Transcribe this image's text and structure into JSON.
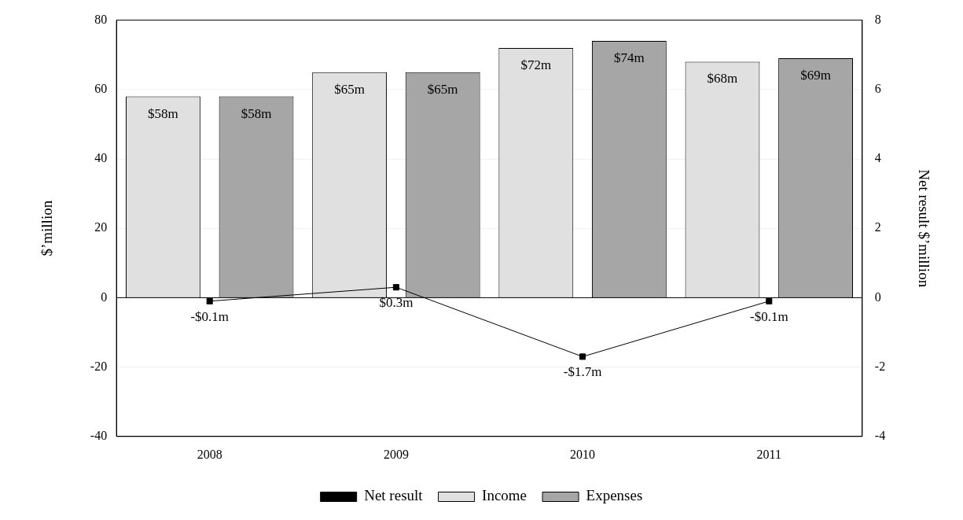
{
  "chart_data": {
    "type": "bar",
    "ylabel": "$’million",
    "y2label": "Net result $’million",
    "categories": [
      "2008",
      "2009",
      "2010",
      "2011"
    ],
    "series": [
      {
        "name": "Income",
        "color": "#e0e0e0",
        "values": [
          58,
          65,
          72,
          68
        ],
        "value_labels": [
          "$58m",
          "$65m",
          "$72m",
          "$68m"
        ]
      },
      {
        "name": "Expenses",
        "color": "#a6a6a6",
        "values": [
          58,
          65,
          74,
          69
        ],
        "value_labels": [
          "$58m",
          "$65m",
          "$74m",
          "$69m"
        ]
      },
      {
        "name": "Net result",
        "type": "line",
        "axis": "y2",
        "color": "#000000",
        "marker": "square",
        "line_style": "solid",
        "values": [
          -0.1,
          0.3,
          -1.7,
          -0.1
        ],
        "value_labels": [
          "-$0.1m",
          "$0.3m",
          "-$1.7m",
          "-$0.1m"
        ]
      }
    ],
    "ylim": [
      -40,
      80
    ],
    "yticks": [
      -40,
      -20,
      0,
      20,
      40,
      60,
      80
    ],
    "y2lim": [
      -4,
      8
    ],
    "y2ticks": [
      -4,
      -2,
      0,
      2,
      4,
      6,
      8
    ],
    "grid": "y",
    "legend": "bottom"
  }
}
